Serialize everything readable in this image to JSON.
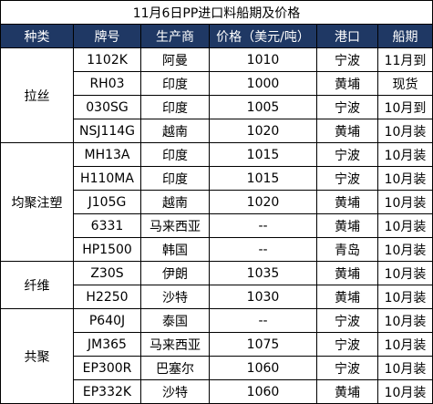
{
  "title": "11月6日PP进口料船期及价格",
  "headers": [
    "种类",
    "牌号",
    "生产商",
    "价格（美元/吨）",
    "港口",
    "船期"
  ],
  "groups": [
    {
      "category": "拉丝",
      "rows": [
        {
          "grade": "1102K",
          "producer": "阿曼",
          "price": "1010",
          "port": "宁波",
          "shipment": "11月到"
        },
        {
          "grade": "RH03",
          "producer": "印度",
          "price": "1000",
          "port": "黄埔",
          "shipment": "现货"
        },
        {
          "grade": "030SG",
          "producer": "印度",
          "price": "1005",
          "port": "宁波",
          "shipment": "10月到"
        },
        {
          "grade": "NSJ114G",
          "producer": "越南",
          "price": "1020",
          "port": "黄埔",
          "shipment": "10月装"
        }
      ]
    },
    {
      "category": "均聚注塑",
      "rows": [
        {
          "grade": "MH13A",
          "producer": "印度",
          "price": "1015",
          "port": "宁波",
          "shipment": "10月装"
        },
        {
          "grade": "H110MA",
          "producer": "印度",
          "price": "1015",
          "port": "宁波",
          "shipment": "10月装"
        },
        {
          "grade": "J105G",
          "producer": "越南",
          "price": "1020",
          "port": "黄埔",
          "shipment": "10月装"
        },
        {
          "grade": "6331",
          "producer": "马来西亚",
          "price": "--",
          "port": "黄埔",
          "shipment": "10月装"
        },
        {
          "grade": "HP1500",
          "producer": "韩国",
          "price": "--",
          "port": "青岛",
          "shipment": "10月装"
        }
      ]
    },
    {
      "category": "纤维",
      "rows": [
        {
          "grade": "Z30S",
          "producer": "伊朗",
          "price": "1035",
          "port": "黄埔",
          "shipment": "10月装"
        },
        {
          "grade": "H2250",
          "producer": "沙特",
          "price": "1030",
          "port": "黄埔",
          "shipment": "10月装"
        }
      ]
    },
    {
      "category": "共聚",
      "rows": [
        {
          "grade": "P640J",
          "producer": "泰国",
          "price": "--",
          "port": "宁波",
          "shipment": "10月装"
        },
        {
          "grade": "JM365",
          "producer": "马来西亚",
          "price": "1075",
          "port": "宁波",
          "shipment": "10月装"
        },
        {
          "grade": "EP300R",
          "producer": "巴塞尔",
          "price": "1060",
          "port": "宁波",
          "shipment": "10月装"
        },
        {
          "grade": "EP332K",
          "producer": "沙特",
          "price": "1060",
          "port": "黄埔",
          "shipment": "10月装"
        }
      ]
    }
  ]
}
